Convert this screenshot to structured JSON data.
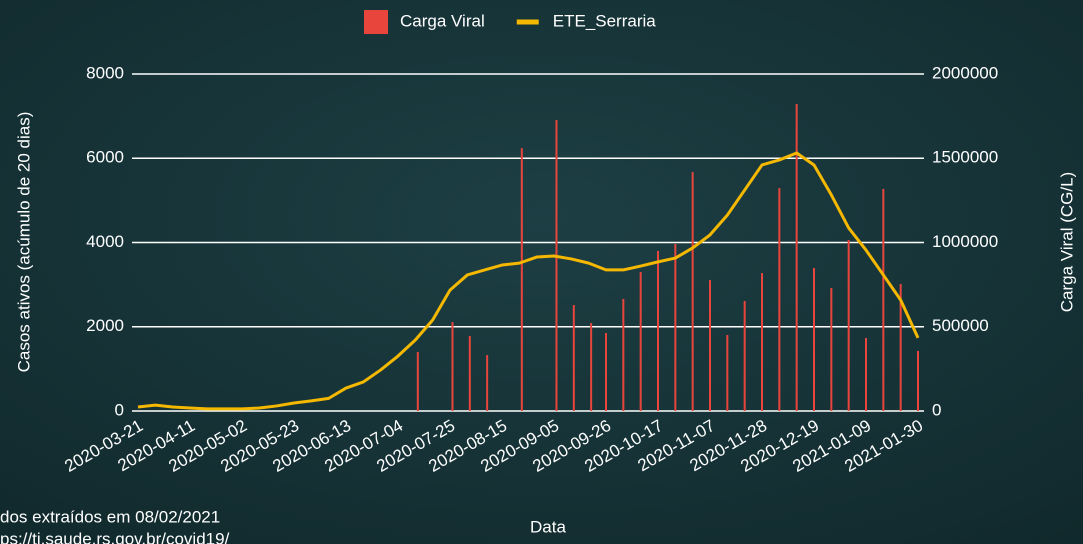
{
  "chart_data": {
    "type": "bar_line",
    "xlabel": "Data",
    "ylabel": "Casos ativos (acúmulo de 20 dias)",
    "y2label": "Carga Viral (CG/L)",
    "notes": [
      "dos extraídos em 08/02/2021",
      "ps://ti.saude.rs.gov.br/covid19/"
    ],
    "legend": "top",
    "grid": true,
    "xlim": [
      "2020-03-21",
      "2021-01-30"
    ],
    "xticks": [
      "2020-03-21",
      "2020-04-11",
      "2020-05-02",
      "2020-05-23",
      "2020-06-13",
      "2020-07-04",
      "2020-07-25",
      "2020-08-15",
      "2020-09-05",
      "2020-09-26",
      "2020-10-17",
      "2020-11-07",
      "2020-11-28",
      "2020-12-19",
      "2021-01-09",
      "2021-01-30"
    ],
    "ylim": [
      0,
      8000
    ],
    "yticks": [
      0,
      2000,
      4000,
      6000,
      8000
    ],
    "y2lim": [
      0,
      2000000
    ],
    "y2ticks": [
      0,
      500000,
      1000000,
      1500000,
      2000000
    ],
    "series": [
      {
        "name": "Carga Viral",
        "type": "bar",
        "axis": "y2",
        "color": "#e8453c",
        "x": [
          "2020-07-12",
          "2020-07-26",
          "2020-08-02",
          "2020-08-09",
          "2020-08-23",
          "2020-09-06",
          "2020-09-13",
          "2020-09-20",
          "2020-09-26",
          "2020-10-03",
          "2020-10-10",
          "2020-10-17",
          "2020-10-24",
          "2020-10-31",
          "2020-11-07",
          "2020-11-14",
          "2020-11-21",
          "2020-11-28",
          "2020-12-05",
          "2020-12-12",
          "2020-12-19",
          "2020-12-26",
          "2021-01-02",
          "2021-01-09",
          "2021-01-16",
          "2021-01-23",
          "2021-01-30"
        ],
        "values": [
          350000,
          528000,
          445000,
          332000,
          1560000,
          1727000,
          629000,
          522000,
          463000,
          665000,
          825000,
          950000,
          991000,
          1418000,
          777000,
          451000,
          653000,
          819000,
          1323000,
          1822000,
          849000,
          730000,
          1015000,
          433000,
          1318000,
          754000,
          356000
        ]
      },
      {
        "name": "ETE_Serraria",
        "type": "line",
        "axis": "y",
        "color": "#f5b800",
        "x": [
          "2020-03-21",
          "2020-03-28",
          "2020-04-04",
          "2020-04-11",
          "2020-04-18",
          "2020-04-25",
          "2020-05-02",
          "2020-05-09",
          "2020-05-16",
          "2020-05-23",
          "2020-05-30",
          "2020-06-06",
          "2020-06-13",
          "2020-06-20",
          "2020-06-27",
          "2020-07-04",
          "2020-07-11",
          "2020-07-18",
          "2020-07-25",
          "2020-08-01",
          "2020-08-08",
          "2020-08-15",
          "2020-08-22",
          "2020-08-29",
          "2020-09-05",
          "2020-09-12",
          "2020-09-19",
          "2020-09-26",
          "2020-10-03",
          "2020-10-10",
          "2020-10-17",
          "2020-10-24",
          "2020-10-31",
          "2020-11-07",
          "2020-11-14",
          "2020-11-21",
          "2020-11-28",
          "2020-12-05",
          "2020-12-12",
          "2020-12-19",
          "2020-12-26",
          "2021-01-02",
          "2021-01-09",
          "2021-01-16",
          "2021-01-23",
          "2021-01-30"
        ],
        "values": [
          95,
          140,
          95,
          70,
          50,
          50,
          50,
          70,
          120,
          190,
          240,
          300,
          545,
          690,
          975,
          1305,
          1685,
          2160,
          2870,
          3230,
          3350,
          3465,
          3510,
          3655,
          3680,
          3610,
          3510,
          3350,
          3350,
          3440,
          3540,
          3630,
          3870,
          4180,
          4650,
          5245,
          5840,
          5960,
          6125,
          5840,
          5130,
          4345,
          3820,
          3230,
          2635,
          1735
        ]
      }
    ]
  }
}
